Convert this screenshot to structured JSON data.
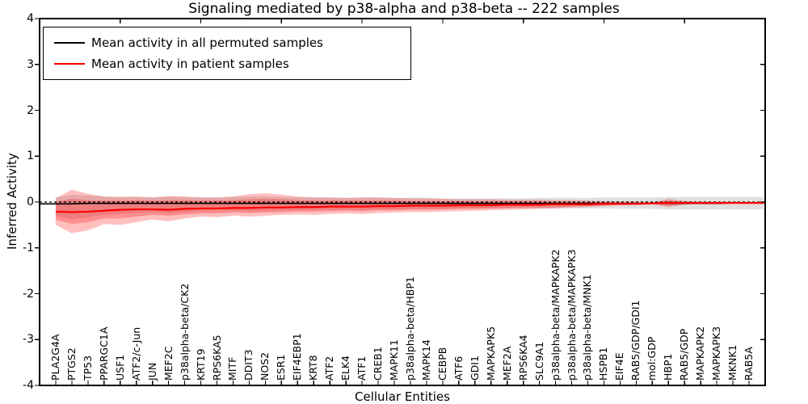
{
  "title": "Signaling mediated by p38-alpha and p38-beta -- 222 samples",
  "legend": {
    "items": [
      {
        "label": "Mean activity in all permuted samples",
        "color": "#000000"
      },
      {
        "label": "Mean activity in patient samples",
        "color": "#ff0000"
      }
    ]
  },
  "axes": {
    "xlabel": "Cellular Entities",
    "ylabel": "Inferred Activity",
    "yticks": [
      "4",
      "3",
      "2",
      "1",
      "0",
      "-1",
      "-2",
      "-3",
      "-4"
    ],
    "ylim": [
      -4,
      4
    ]
  },
  "chart_data": {
    "type": "line",
    "title": "Signaling mediated by p38-alpha and p38-beta -- 222 samples",
    "xlabel": "Cellular Entities",
    "ylabel": "Inferred Activity",
    "ylim": [
      -4,
      4
    ],
    "grid": false,
    "legend_position": "upper left",
    "zero_line": 0,
    "categories": [
      "PLA2G4A",
      "PTGS2",
      "TP53",
      "PPARGC1A",
      "USF1",
      "ATF2/c-Jun",
      "JUN",
      "MEF2C",
      "p38alpha-beta/CK2",
      "KRT19",
      "RPS6KA5",
      "MITF",
      "DDIT3",
      "NOS2",
      "ESR1",
      "EIF4EBP1",
      "KRT8",
      "ATF2",
      "ELK4",
      "ATF1",
      "CREB1",
      "MAPK11",
      "p38alpha-beta/HBP1",
      "MAPK14",
      "CEBPB",
      "ATF6",
      "GDI1",
      "MAPKAPK5",
      "MEF2A",
      "RPS6KA4",
      "SLC9A1",
      "p38alpha-beta/MAPKAPK2",
      "p38alpha-beta/MAPKAPK3",
      "p38alpha-beta/MNK1",
      "HSPB1",
      "EIF4E",
      "RAB5/GDP/GDI1",
      "mol:GDP",
      "HBP1",
      "RAB5/GDP",
      "MAPKAPK2",
      "MAPKAPK3",
      "MKNK1",
      "RAB5A"
    ],
    "series": [
      {
        "name": "Mean activity in all permuted samples",
        "color": "#000000",
        "style": "solid",
        "values": [
          -0.04,
          -0.04,
          -0.03,
          -0.03,
          -0.03,
          -0.03,
          -0.03,
          -0.03,
          -0.03,
          -0.03,
          -0.03,
          -0.03,
          -0.03,
          -0.03,
          -0.03,
          -0.03,
          -0.03,
          -0.03,
          -0.03,
          -0.03,
          -0.03,
          -0.03,
          -0.03,
          -0.03,
          -0.03,
          -0.03,
          -0.03,
          -0.03,
          -0.03,
          -0.03,
          -0.03,
          -0.03,
          -0.03,
          -0.03,
          -0.03,
          -0.03,
          -0.03,
          -0.03,
          -0.03,
          -0.03,
          -0.03,
          -0.03,
          -0.02,
          -0.02
        ]
      },
      {
        "name": "Mean activity in patient samples",
        "color": "#ff0000",
        "style": "solid",
        "values": [
          -0.21,
          -0.22,
          -0.21,
          -0.19,
          -0.17,
          -0.16,
          -0.16,
          -0.17,
          -0.15,
          -0.14,
          -0.14,
          -0.13,
          -0.13,
          -0.12,
          -0.12,
          -0.11,
          -0.11,
          -0.1,
          -0.1,
          -0.1,
          -0.09,
          -0.09,
          -0.08,
          -0.08,
          -0.08,
          -0.07,
          -0.07,
          -0.07,
          -0.06,
          -0.06,
          -0.06,
          -0.05,
          -0.05,
          -0.05,
          -0.04,
          -0.04,
          -0.04,
          -0.03,
          -0.02,
          -0.02,
          -0.02,
          -0.02,
          -0.02,
          -0.02
        ]
      }
    ],
    "bands": [
      {
        "name": "permuted-sample-range",
        "color": "#999999",
        "opacity": 0.3,
        "upper": [
          0.1,
          0.16,
          0.14,
          0.12,
          0.11,
          0.11,
          0.1,
          0.12,
          0.11,
          0.1,
          0.1,
          0.11,
          0.12,
          0.12,
          0.11,
          0.1,
          0.1,
          0.1,
          0.09,
          0.1,
          0.1,
          0.09,
          0.09,
          0.09,
          0.08,
          0.08,
          0.08,
          0.08,
          0.08,
          0.08,
          0.09,
          0.09,
          0.09,
          0.09,
          0.1,
          0.1,
          0.1,
          0.1,
          0.11,
          0.11,
          0.11,
          0.11,
          0.11,
          0.11
        ],
        "lower": [
          -0.3,
          -0.38,
          -0.33,
          -0.28,
          -0.26,
          -0.24,
          -0.22,
          -0.24,
          -0.22,
          -0.2,
          -0.19,
          -0.19,
          -0.2,
          -0.19,
          -0.18,
          -0.18,
          -0.17,
          -0.17,
          -0.16,
          -0.17,
          -0.16,
          -0.16,
          -0.15,
          -0.15,
          -0.15,
          -0.14,
          -0.14,
          -0.14,
          -0.14,
          -0.14,
          -0.14,
          -0.14,
          -0.14,
          -0.14,
          -0.14,
          -0.15,
          -0.15,
          -0.15,
          -0.16,
          -0.16,
          -0.16,
          -0.16,
          -0.16,
          -0.16
        ]
      },
      {
        "name": "patient-sample-range-outer",
        "color": "#ff0000",
        "opacity": 0.25,
        "upper": [
          0.08,
          0.27,
          0.18,
          0.12,
          0.11,
          0.12,
          0.1,
          0.13,
          0.12,
          0.1,
          0.1,
          0.12,
          0.17,
          0.19,
          0.16,
          0.12,
          0.1,
          0.1,
          0.09,
          0.1,
          0.1,
          0.09,
          0.08,
          0.08,
          0.07,
          0.06,
          0.06,
          0.06,
          0.05,
          0.05,
          0.05,
          0.04,
          0.04,
          0.03,
          0.02,
          0.01,
          0.01,
          -0.01,
          0.07,
          0.02,
          0.0,
          0.0,
          -0.01,
          -0.01
        ],
        "lower": [
          -0.5,
          -0.68,
          -0.62,
          -0.48,
          -0.5,
          -0.44,
          -0.38,
          -0.42,
          -0.36,
          -0.32,
          -0.33,
          -0.3,
          -0.32,
          -0.3,
          -0.28,
          -0.27,
          -0.28,
          -0.26,
          -0.25,
          -0.26,
          -0.24,
          -0.23,
          -0.22,
          -0.22,
          -0.21,
          -0.2,
          -0.19,
          -0.18,
          -0.17,
          -0.16,
          -0.15,
          -0.14,
          -0.12,
          -0.11,
          -0.09,
          -0.07,
          -0.06,
          -0.05,
          -0.11,
          -0.06,
          -0.04,
          -0.04,
          -0.03,
          -0.03
        ]
      },
      {
        "name": "patient-sample-range-inner",
        "color": "#ff0000",
        "opacity": 0.25,
        "upper": [
          0.0,
          0.07,
          0.04,
          0.03,
          0.03,
          0.04,
          0.03,
          0.04,
          0.04,
          0.03,
          0.03,
          0.04,
          0.06,
          0.07,
          0.06,
          0.04,
          0.03,
          0.03,
          0.03,
          0.03,
          0.03,
          0.03,
          0.02,
          0.02,
          0.02,
          0.02,
          0.01,
          0.01,
          0.01,
          0.01,
          0.01,
          0.0,
          0.0,
          0.0,
          -0.01,
          -0.01,
          -0.02,
          -0.02,
          0.03,
          0.0,
          -0.01,
          -0.01,
          -0.01,
          -0.01
        ],
        "lower": [
          -0.38,
          -0.48,
          -0.44,
          -0.36,
          -0.36,
          -0.32,
          -0.28,
          -0.3,
          -0.27,
          -0.25,
          -0.25,
          -0.23,
          -0.24,
          -0.23,
          -0.22,
          -0.21,
          -0.21,
          -0.2,
          -0.19,
          -0.2,
          -0.18,
          -0.18,
          -0.17,
          -0.17,
          -0.16,
          -0.15,
          -0.15,
          -0.14,
          -0.13,
          -0.12,
          -0.12,
          -0.11,
          -0.1,
          -0.09,
          -0.07,
          -0.06,
          -0.05,
          -0.04,
          -0.08,
          -0.04,
          -0.03,
          -0.03,
          -0.03,
          -0.03
        ]
      }
    ]
  }
}
